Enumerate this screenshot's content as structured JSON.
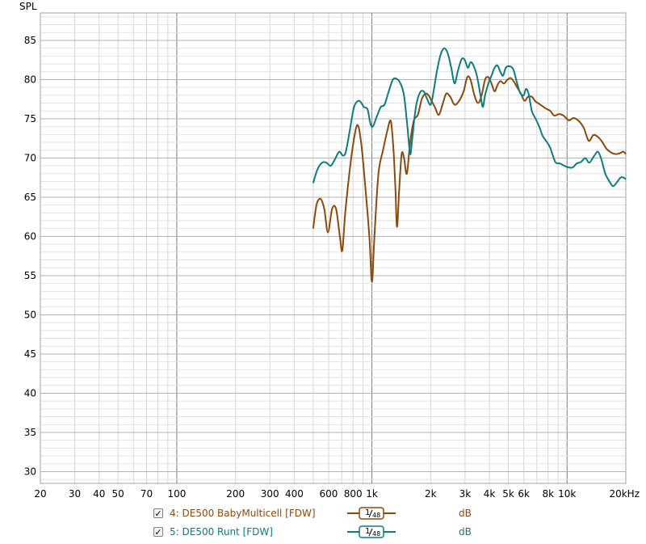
{
  "chart_data": {
    "type": "line",
    "ylabel": "SPL",
    "x_scale": "log",
    "xlim": [
      20,
      20000
    ],
    "ylim": [
      28.5,
      88.5
    ],
    "y_ticks": [
      30,
      35,
      40,
      45,
      50,
      55,
      60,
      65,
      70,
      75,
      80,
      85
    ],
    "x_ticks": [
      {
        "v": 20,
        "label": "20"
      },
      {
        "v": 30,
        "label": "30"
      },
      {
        "v": 40,
        "label": "40"
      },
      {
        "v": 50,
        "label": "50"
      },
      {
        "v": 70,
        "label": "70"
      },
      {
        "v": 100,
        "label": "100"
      },
      {
        "v": 200,
        "label": "200"
      },
      {
        "v": 300,
        "label": "300"
      },
      {
        "v": 400,
        "label": "400"
      },
      {
        "v": 600,
        "label": "600"
      },
      {
        "v": 800,
        "label": "800"
      },
      {
        "v": 1000,
        "label": "1k"
      },
      {
        "v": 2000,
        "label": "2k"
      },
      {
        "v": 3000,
        "label": "3k"
      },
      {
        "v": 4000,
        "label": "4k"
      },
      {
        "v": 5000,
        "label": "5k"
      },
      {
        "v": 6000,
        "label": "6k"
      },
      {
        "v": 8000,
        "label": "8k"
      },
      {
        "v": 10000,
        "label": "10k"
      },
      {
        "v": 20000,
        "label": "20kHz"
      }
    ],
    "grid": true,
    "legend_position": "bottom",
    "series": [
      {
        "name": "4: DE500 BabyMulticell [FDW]",
        "color": "#8b4a0c",
        "smoothing": "1/48",
        "unit": "dB",
        "points": [
          [
            500,
            61
          ],
          [
            520,
            64
          ],
          [
            545,
            64.8
          ],
          [
            570,
            63.5
          ],
          [
            595,
            60.5
          ],
          [
            625,
            63.5
          ],
          [
            655,
            63.5
          ],
          [
            685,
            60
          ],
          [
            705,
            58.2
          ],
          [
            730,
            63
          ],
          [
            770,
            68.5
          ],
          [
            810,
            72.5
          ],
          [
            845,
            74.2
          ],
          [
            880,
            72
          ],
          [
            920,
            67
          ],
          [
            970,
            60
          ],
          [
            1000,
            54.2
          ],
          [
            1030,
            60
          ],
          [
            1080,
            68
          ],
          [
            1140,
            71
          ],
          [
            1200,
            73.5
          ],
          [
            1250,
            74.7
          ],
          [
            1290,
            71
          ],
          [
            1320,
            66
          ],
          [
            1345,
            61.2
          ],
          [
            1380,
            66
          ],
          [
            1420,
            70.5
          ],
          [
            1460,
            70
          ],
          [
            1510,
            68
          ],
          [
            1570,
            72
          ],
          [
            1640,
            74.8
          ],
          [
            1720,
            75.5
          ],
          [
            1800,
            77.5
          ],
          [
            1880,
            78.2
          ],
          [
            1950,
            78
          ],
          [
            2020,
            77.3
          ],
          [
            2100,
            76.5
          ],
          [
            2200,
            75.5
          ],
          [
            2300,
            76.8
          ],
          [
            2400,
            78.2
          ],
          [
            2520,
            77.8
          ],
          [
            2650,
            76.8
          ],
          [
            2800,
            77.3
          ],
          [
            2950,
            78.5
          ],
          [
            3080,
            80.3
          ],
          [
            3200,
            80
          ],
          [
            3350,
            78
          ],
          [
            3500,
            77
          ],
          [
            3650,
            78
          ],
          [
            3800,
            80
          ],
          [
            3950,
            80.3
          ],
          [
            4100,
            79.5
          ],
          [
            4250,
            78.5
          ],
          [
            4400,
            79.3
          ],
          [
            4550,
            79.8
          ],
          [
            4750,
            79.5
          ],
          [
            4950,
            80
          ],
          [
            5150,
            80.2
          ],
          [
            5350,
            79.7
          ],
          [
            5550,
            79
          ],
          [
            5800,
            78.2
          ],
          [
            6050,
            77.3
          ],
          [
            6300,
            77.8
          ],
          [
            6600,
            77.8
          ],
          [
            6900,
            77.2
          ],
          [
            7300,
            76.8
          ],
          [
            7800,
            76.3
          ],
          [
            8200,
            76
          ],
          [
            8600,
            75.4
          ],
          [
            9100,
            75.6
          ],
          [
            9600,
            75.4
          ],
          [
            10200,
            74.8
          ],
          [
            10800,
            75.1
          ],
          [
            11500,
            74.7
          ],
          [
            12200,
            73.8
          ],
          [
            12900,
            72.2
          ],
          [
            13600,
            72.9
          ],
          [
            14200,
            72.8
          ],
          [
            15000,
            72.2
          ],
          [
            15900,
            71.2
          ],
          [
            16800,
            70.7
          ],
          [
            17700,
            70.5
          ],
          [
            18600,
            70.6
          ],
          [
            19400,
            70.8
          ],
          [
            20000,
            70.5
          ]
        ]
      },
      {
        "name": "5: DE500 Runt [FDW]",
        "color": "#0b7d7d",
        "smoothing": "1/48",
        "unit": "dB",
        "points": [
          [
            500,
            66.8
          ],
          [
            525,
            68.5
          ],
          [
            555,
            69.4
          ],
          [
            585,
            69.4
          ],
          [
            615,
            69
          ],
          [
            645,
            69.8
          ],
          [
            680,
            70.8
          ],
          [
            710,
            70.3
          ],
          [
            735,
            70.8
          ],
          [
            770,
            73.5
          ],
          [
            810,
            76.5
          ],
          [
            860,
            77.3
          ],
          [
            910,
            76.5
          ],
          [
            950,
            76.2
          ],
          [
            980,
            74.5
          ],
          [
            1010,
            74
          ],
          [
            1060,
            75.3
          ],
          [
            1110,
            76.5
          ],
          [
            1160,
            76.8
          ],
          [
            1220,
            78.5
          ],
          [
            1280,
            80
          ],
          [
            1340,
            80.1
          ],
          [
            1400,
            79.5
          ],
          [
            1460,
            78
          ],
          [
            1520,
            74
          ],
          [
            1570,
            70.5
          ],
          [
            1610,
            72.5
          ],
          [
            1680,
            76.5
          ],
          [
            1760,
            78.3
          ],
          [
            1840,
            78.5
          ],
          [
            1920,
            77.5
          ],
          [
            2000,
            76.8
          ],
          [
            2070,
            78.5
          ],
          [
            2150,
            81
          ],
          [
            2250,
            83.2
          ],
          [
            2350,
            84
          ],
          [
            2450,
            83.3
          ],
          [
            2550,
            81.5
          ],
          [
            2650,
            79.5
          ],
          [
            2750,
            81
          ],
          [
            2880,
            82.6
          ],
          [
            2990,
            82.5
          ],
          [
            3100,
            81.5
          ],
          [
            3200,
            82.2
          ],
          [
            3300,
            81.9
          ],
          [
            3450,
            80.5
          ],
          [
            3600,
            78
          ],
          [
            3700,
            76.5
          ],
          [
            3800,
            78
          ],
          [
            3950,
            79.5
          ],
          [
            4100,
            80.5
          ],
          [
            4250,
            81.5
          ],
          [
            4400,
            81.8
          ],
          [
            4550,
            81
          ],
          [
            4700,
            80.5
          ],
          [
            4850,
            81.5
          ],
          [
            5050,
            81.7
          ],
          [
            5300,
            81.3
          ],
          [
            5550,
            79.5
          ],
          [
            5750,
            78.3
          ],
          [
            6000,
            78
          ],
          [
            6150,
            78.8
          ],
          [
            6350,
            78.2
          ],
          [
            6600,
            76
          ],
          [
            6900,
            75
          ],
          [
            7200,
            74
          ],
          [
            7500,
            72.8
          ],
          [
            7800,
            72.2
          ],
          [
            8200,
            71.3
          ],
          [
            8700,
            69.5
          ],
          [
            9200,
            69.3
          ],
          [
            9700,
            69
          ],
          [
            10200,
            68.8
          ],
          [
            10700,
            68.8
          ],
          [
            11200,
            69.3
          ],
          [
            11800,
            69.5
          ],
          [
            12400,
            70
          ],
          [
            13000,
            69.4
          ],
          [
            13800,
            70.3
          ],
          [
            14400,
            70.8
          ],
          [
            15000,
            69.8
          ],
          [
            15700,
            68
          ],
          [
            16500,
            67
          ],
          [
            17200,
            66.4
          ],
          [
            18000,
            66.9
          ],
          [
            18800,
            67.5
          ],
          [
            19500,
            67.5
          ],
          [
            20000,
            67.3
          ]
        ]
      }
    ]
  },
  "legend": [
    {
      "label": "4: DE500 BabyMulticell [FDW]",
      "color": "#8b4a0c",
      "smoothing_num": "1",
      "smoothing_den": "48",
      "unit": "dB",
      "checked": true
    },
    {
      "label": "5: DE500 Runt [FDW]",
      "color": "#0b7d7d",
      "smoothing_num": "1",
      "smoothing_den": "48",
      "unit": "dB",
      "checked": true
    }
  ]
}
